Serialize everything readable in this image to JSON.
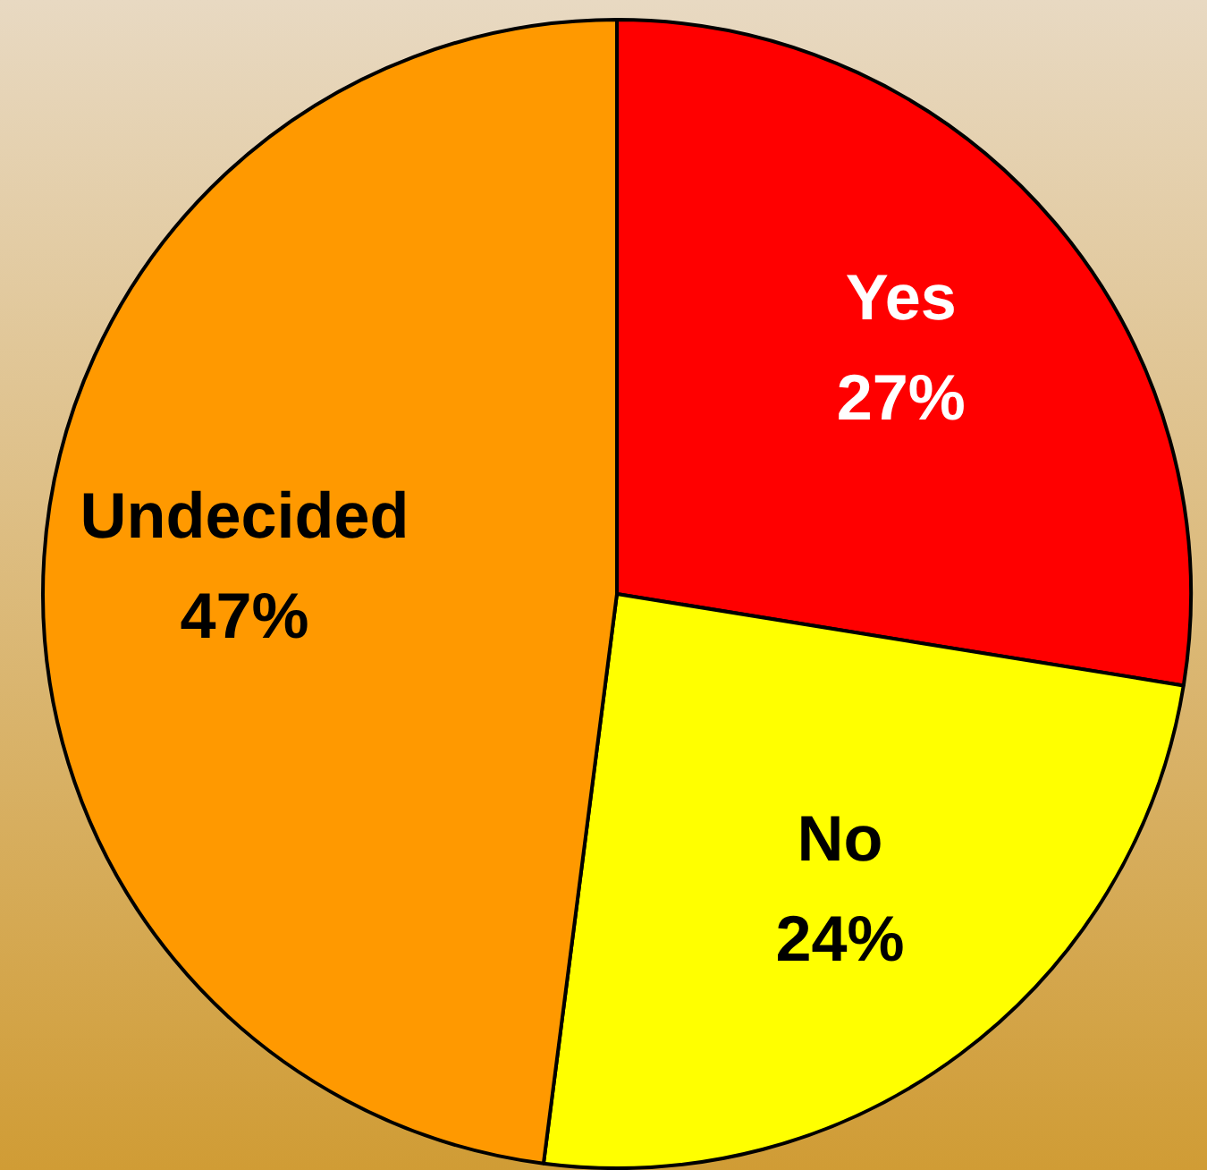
{
  "chart_data": {
    "type": "pie",
    "categories": [
      "Yes",
      "No",
      "Undecided"
    ],
    "values": [
      27,
      24,
      47
    ],
    "colors": [
      "#ff0000",
      "#ffff00",
      "#ff9900"
    ],
    "value_labels": [
      "27%",
      "24%",
      "47%"
    ],
    "legend": false
  }
}
